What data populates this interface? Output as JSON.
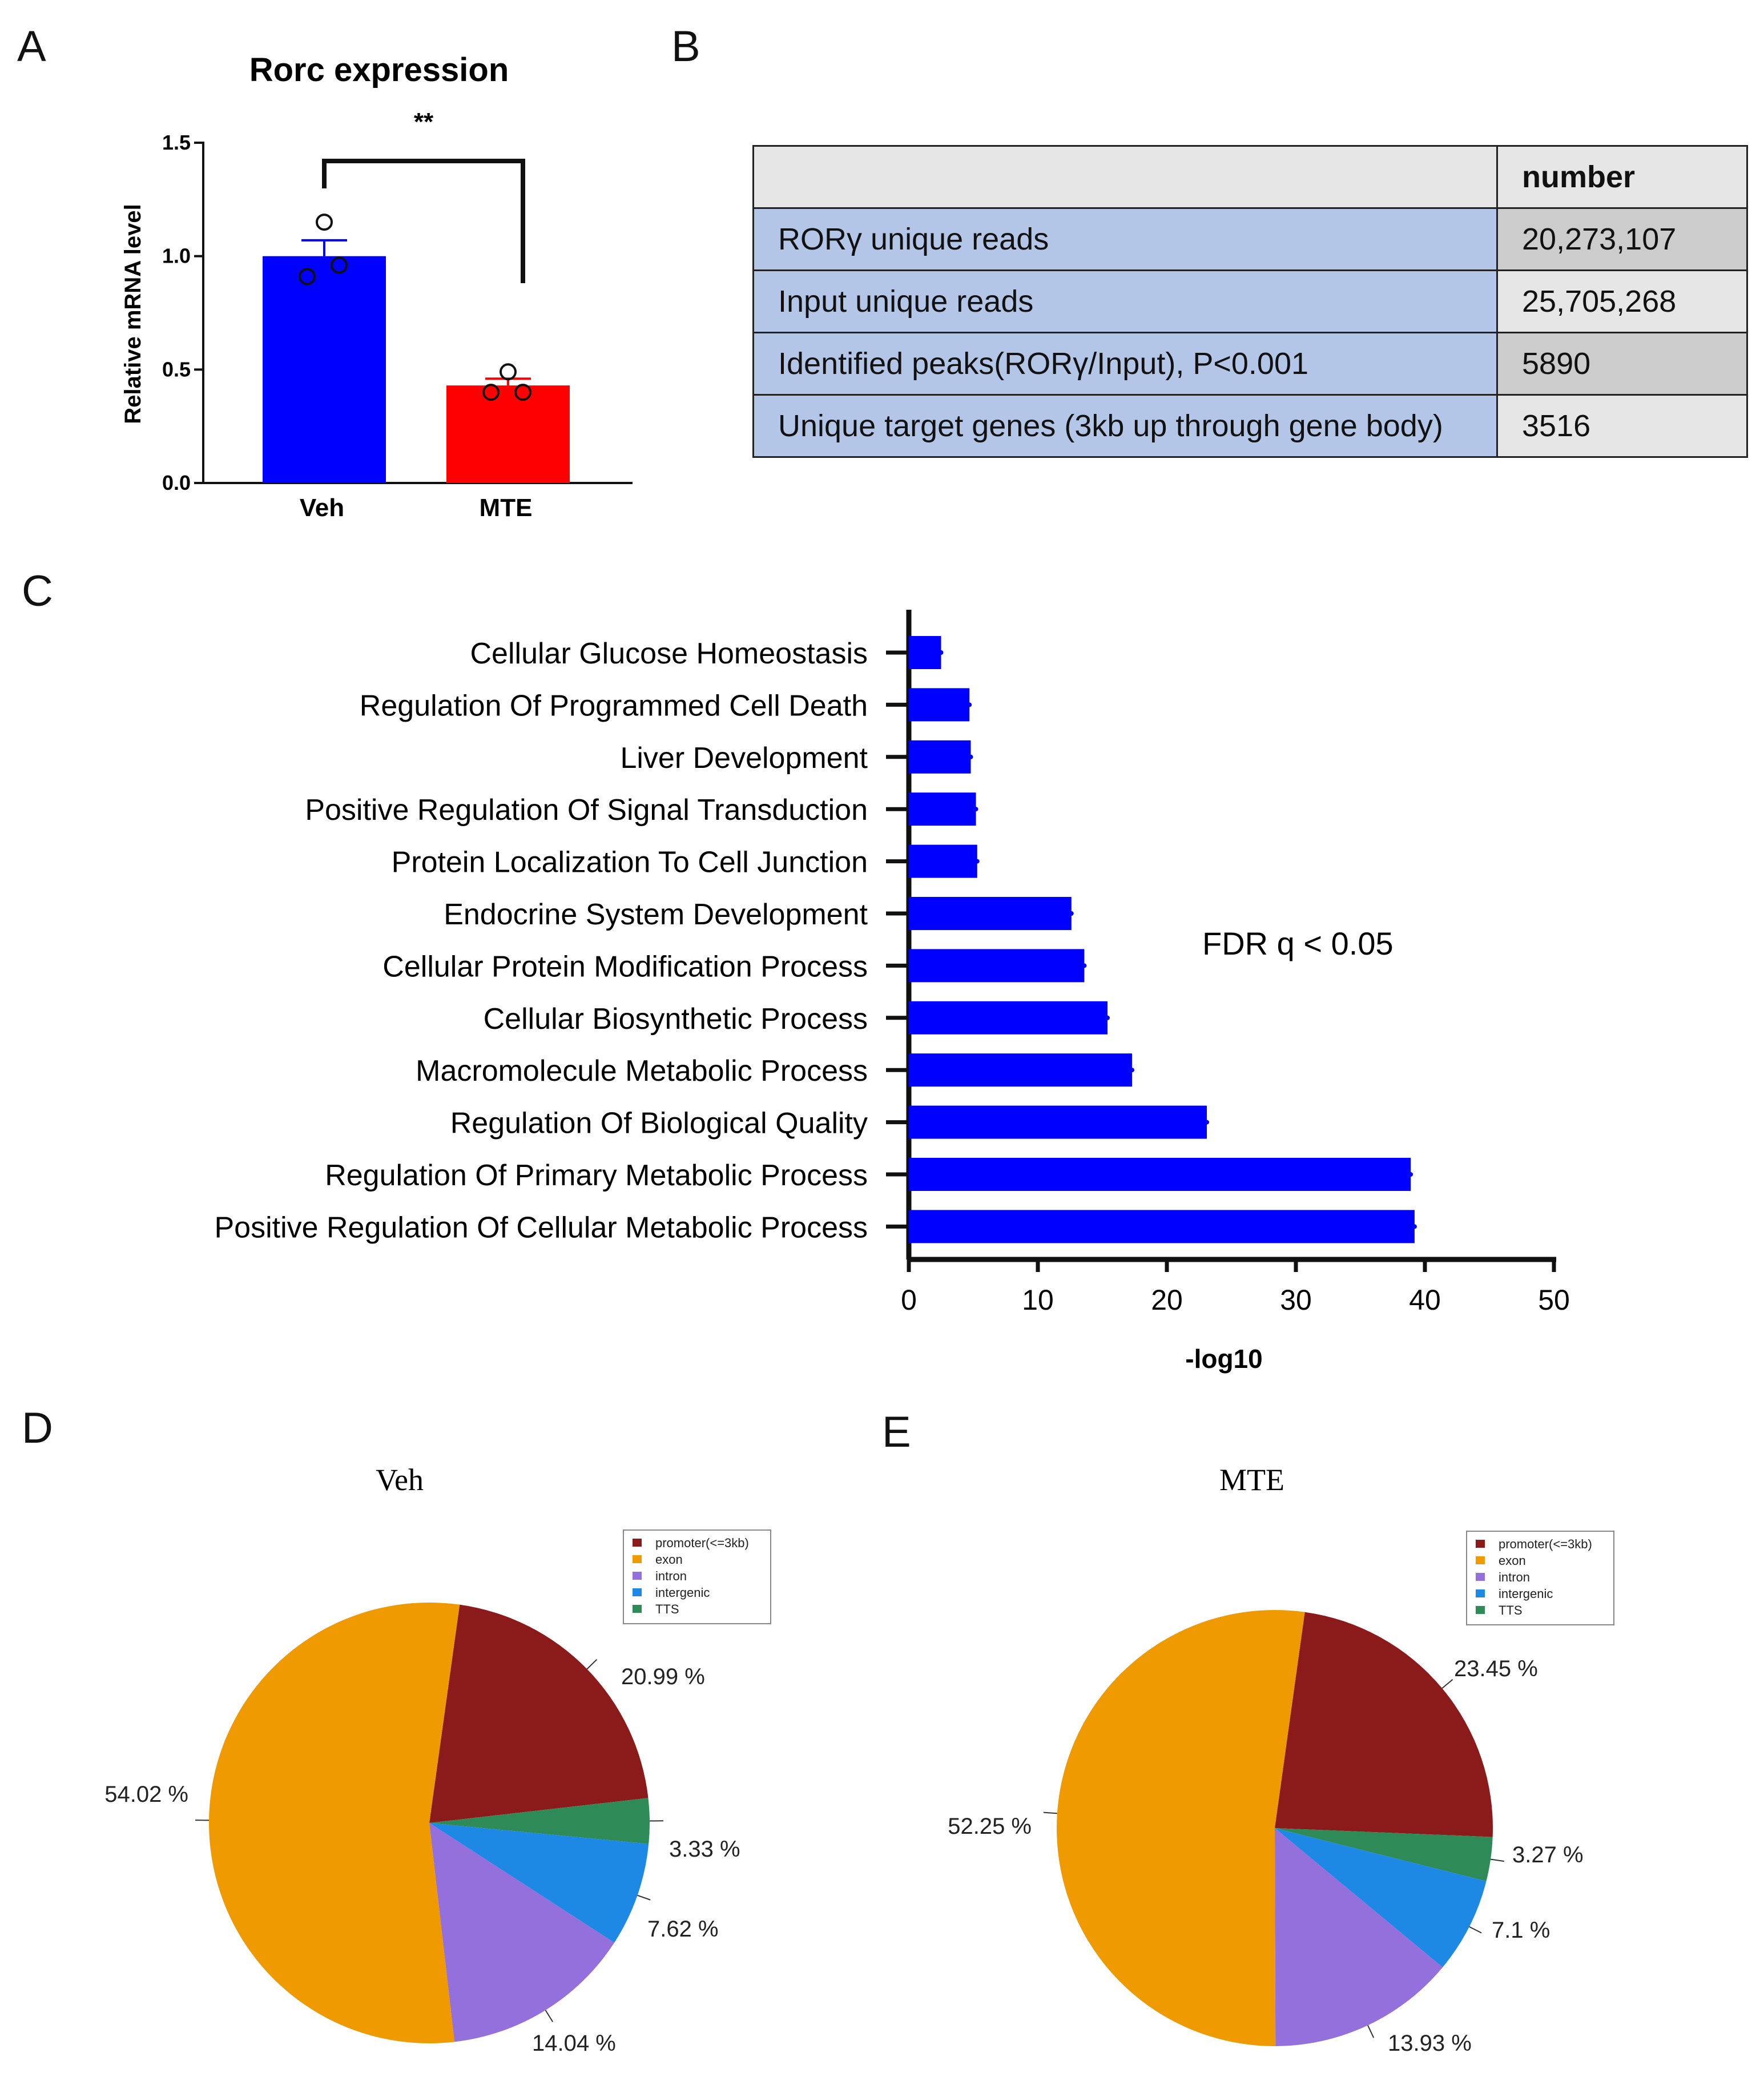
{
  "panels": {
    "A": "A",
    "B": "B",
    "C": "C",
    "D": "D",
    "E": "E"
  },
  "chart_data": [
    {
      "id": "A",
      "type": "bar",
      "title": "Rorc expression",
      "ylabel": "Relative mRNA level",
      "xlabel": "",
      "categories": [
        "Veh",
        "MTE"
      ],
      "values": [
        1.0,
        0.43
      ],
      "errors": [
        0.07,
        0.03
      ],
      "points": [
        [
          1.15,
          0.91,
          0.96
        ],
        [
          0.49,
          0.4,
          0.4
        ]
      ],
      "colors": [
        "#0000ff",
        "#ff0000"
      ],
      "ylim": [
        0,
        1.5
      ],
      "yticks": [
        0.0,
        0.5,
        1.0,
        1.5
      ],
      "ytick_labels": [
        "0.0",
        "0.5",
        "1.0",
        "1.5"
      ],
      "significance": "**"
    },
    {
      "id": "B",
      "type": "table",
      "header": [
        "",
        "number"
      ],
      "rows": [
        {
          "label": "RORγ unique reads",
          "value": "20,273,107"
        },
        {
          "label": "Input unique reads",
          "value": "25,705,268"
        },
        {
          "label": "Identified peaks(RORγ/Input), P<0.001",
          "value": "5890"
        },
        {
          "label": "Unique target genes (3kb up through gene body)",
          "value": "3516"
        }
      ]
    },
    {
      "id": "C",
      "type": "bar",
      "orientation": "horizontal",
      "categories": [
        "Cellular Glucose Homeostasis",
        "Regulation Of Programmed Cell Death",
        "Liver Development",
        "Positive Regulation Of Signal Transduction",
        "Protein Localization To Cell Junction",
        "Endocrine System Development",
        "Cellular Protein Modification Process",
        "Cellular Biosynthetic Process",
        "Macromolecule Metabolic Process",
        "Regulation Of Biological Quality",
        "Regulation Of Primary Metabolic Process",
        "Positive Regulation Of Cellular Metabolic Process"
      ],
      "values": [
        2.5,
        4.7,
        4.8,
        5.2,
        5.3,
        12.6,
        13.6,
        15.4,
        17.3,
        23.1,
        38.9,
        39.2
      ],
      "color": "#0000ff",
      "xlabel": "-log10",
      "xlim": [
        0,
        50
      ],
      "xticks": [
        0,
        10,
        20,
        30,
        40,
        50
      ],
      "xtick_labels": [
        "0",
        "10",
        "20",
        "30",
        "40",
        "50"
      ],
      "annotation": "FDR q < 0.05"
    },
    {
      "id": "D",
      "type": "pie",
      "title": "Veh",
      "labels": [
        "promoter(<=3kb)",
        "exon",
        "intron",
        "intergenic",
        "TTS"
      ],
      "values": [
        20.99,
        54.02,
        14.04,
        7.62,
        3.33
      ],
      "value_labels": [
        "20.99 %",
        "54.02 %",
        "14.04 %",
        "7.62 %",
        "3.33 %"
      ],
      "colors": [
        "#8b1a1a",
        "#ee9a00",
        "#9370db",
        "#1e88e5",
        "#2e8b57"
      ],
      "legend_position": "top-right"
    },
    {
      "id": "E",
      "type": "pie",
      "title": "MTE",
      "labels": [
        "promoter(<=3kb)",
        "exon",
        "intron",
        "intergenic",
        "TTS"
      ],
      "values": [
        23.45,
        52.25,
        13.93,
        7.1,
        3.27
      ],
      "value_labels": [
        "23.45 %",
        "52.25 %",
        "13.93 %",
        "7.1 %",
        "3.27 %"
      ],
      "colors": [
        "#8b1a1a",
        "#ee9a00",
        "#9370db",
        "#1e88e5",
        "#2e8b57"
      ],
      "legend_position": "top-right"
    }
  ]
}
